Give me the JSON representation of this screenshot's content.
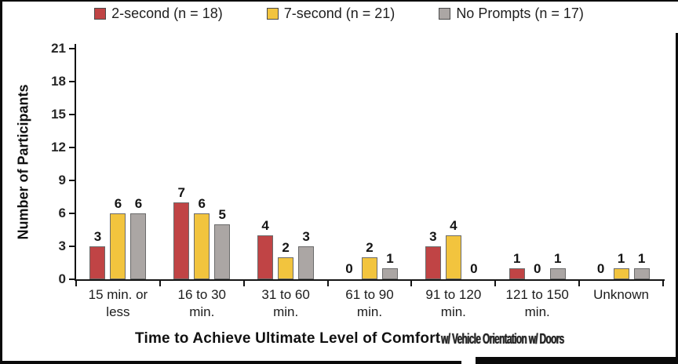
{
  "legend": {
    "items": [
      {
        "label": "2-second (n = 18)",
        "color": "#C04445"
      },
      {
        "label": "7-second (n = 21)",
        "color": "#F2C43E"
      },
      {
        "label": "No Prompts (n = 17)",
        "color": "#ABA6A4"
      }
    ]
  },
  "axes": {
    "x_title": "Time to Achieve Ultimate Level of Comfort",
    "x_title_overlap_artifact": "w/ Vehicle Orientation w/ Doors",
    "y_title": "Number of Participants"
  },
  "chart_data": {
    "type": "bar",
    "title": "",
    "xlabel": "Time to Achieve Ultimate Level of Comfort",
    "ylabel": "Number of Participants",
    "categories": [
      "15 min. or less",
      "16 to 30 min.",
      "31 to 60 min.",
      "61 to 90 min.",
      "91 to 120 min.",
      "121 to 150 min.",
      "Unknown"
    ],
    "xtick_display_labels": [
      "15 min. or\nless",
      "16 to 30\nmin.",
      "31 to 60\nmin.",
      "61 to 90\nmin.",
      "91 to 120\nmin.",
      "121 to 150\nmin.",
      "Unknown"
    ],
    "series": [
      {
        "name": "2-second (n = 18)",
        "color": "#C04445",
        "values": [
          3,
          7,
          4,
          0,
          3,
          1,
          0
        ]
      },
      {
        "name": "7-second (n = 21)",
        "color": "#F2C43E",
        "values": [
          6,
          6,
          2,
          2,
          4,
          0,
          1
        ]
      },
      {
        "name": "No Prompts (n = 17)",
        "color": "#ABA6A4",
        "values": [
          6,
          5,
          3,
          1,
          0,
          1,
          1
        ]
      }
    ],
    "ylim": [
      0,
      21
    ],
    "yticks": [
      0,
      3,
      6,
      9,
      12,
      15,
      18,
      21
    ],
    "grid": false,
    "legend_position": "top",
    "data_labels": true,
    "bar_border_color": "#6B6B6B"
  }
}
